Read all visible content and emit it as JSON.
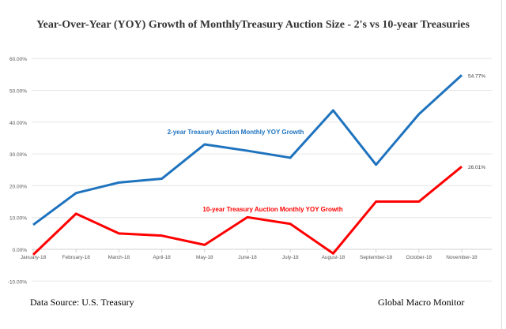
{
  "chart_data": {
    "type": "line",
    "title": "Year-Over-Year (YOY) Growth of MonthlyTreasury  Auction Size - 2's vs 10-year Treasuries",
    "categories": [
      "January-18",
      "February-18",
      "March-18",
      "April-18",
      "May-18",
      "June-18",
      "July-18",
      "August-18",
      "September-18",
      "October-18",
      "November-18"
    ],
    "ylim": [
      -10,
      60
    ],
    "yticks": [
      "-10.00%",
      "0.00%",
      "10.00%",
      "20.00%",
      "30.00%",
      "40.00%",
      "50.00%",
      "60.00%"
    ],
    "ytick_values": [
      -10,
      0,
      10,
      20,
      30,
      40,
      50,
      60
    ],
    "grid": true,
    "series": [
      {
        "name": "2-year Treasury Auction Monthly YOY Growth",
        "color": "#1f73be",
        "values": [
          7.7,
          17.7,
          21.0,
          22.2,
          33.0,
          31.0,
          28.8,
          43.7,
          26.6,
          42.5,
          54.77
        ],
        "end_label": "54.77%"
      },
      {
        "name": "10-year Treasury Auction Monthly YOY Growth",
        "color": "#ff0000",
        "values": [
          -1.7,
          11.2,
          5.0,
          4.3,
          1.4,
          10.1,
          8.0,
          -1.3,
          15.0,
          15.0,
          26.01
        ],
        "end_label": "26.01%"
      }
    ]
  },
  "footer": {
    "source": "Data Source:  U.S. Treasury",
    "brand": "Global Macro Monitor"
  }
}
